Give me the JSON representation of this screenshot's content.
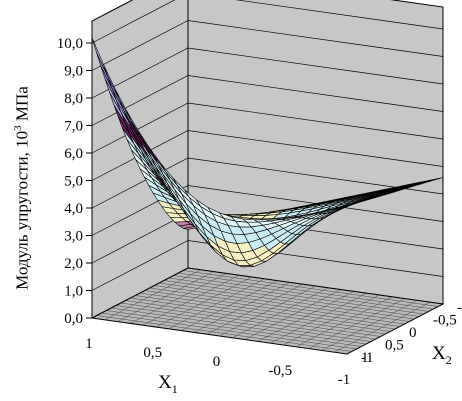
{
  "chart_data": {
    "type": "surface",
    "title": "",
    "zlabel": "Модуль упругости, 10",
    "zlabel_sup": "3",
    "zlabel_unit": " МПа",
    "xlabel": "X",
    "xlabel_sub": "1",
    "ylabel": "X",
    "ylabel_sub": "2",
    "zlim": [
      0,
      10
    ],
    "z_ticks": [
      "0,0",
      "1,0",
      "2,0",
      "3,0",
      "4,0",
      "5,0",
      "6,0",
      "7,0",
      "8,0",
      "9,0",
      "10,0"
    ],
    "x1_ticks": [
      "1",
      "0,5",
      "0",
      "-0,5",
      "-1"
    ],
    "x2_ticks": [
      "-1",
      "-0,5",
      "0",
      "0,5",
      "1",
      "-1"
    ],
    "x1_range": [
      1,
      -1
    ],
    "x2_range": [
      -1,
      1
    ],
    "grid": true,
    "surface_samples": [
      {
        "x1": 1,
        "x2": -1,
        "z": 10.2
      },
      {
        "x1": 1,
        "x2": 1,
        "z": 1.5
      },
      {
        "x1": -1,
        "x2": -1,
        "z": 5.8
      },
      {
        "x1": -1,
        "x2": 1,
        "z": 4.8
      },
      {
        "x1": 0,
        "x2": 0,
        "z": 3.0
      }
    ],
    "color_bands": [
      {
        "range": [
          0,
          1
        ],
        "color": "#9a3d6e"
      },
      {
        "range": [
          1,
          2
        ],
        "color": "#c07fa6"
      },
      {
        "range": [
          2,
          3
        ],
        "color": "#f6f0c2"
      },
      {
        "range": [
          3,
          4
        ],
        "color": "#cbeef6"
      },
      {
        "range": [
          4,
          5
        ],
        "color": "#e6f9fb"
      },
      {
        "range": [
          5,
          6
        ],
        "color": "#c9ecf5"
      },
      {
        "range": [
          6,
          7
        ],
        "color": "#6f1f64"
      },
      {
        "range": [
          7,
          8
        ],
        "color": "#b1b4f0"
      },
      {
        "range": [
          8,
          9
        ],
        "color": "#9093df"
      },
      {
        "range": [
          9,
          10
        ],
        "color": "#c9c9f3"
      },
      {
        "range": [
          10,
          11
        ],
        "color": "#06067a"
      },
      {
        "range": [
          11,
          12
        ],
        "color": "#ff00ff"
      }
    ],
    "wall_color": "#c8c8c8",
    "floor_color": "#bdbdbd",
    "mesh_color": "#000000"
  }
}
